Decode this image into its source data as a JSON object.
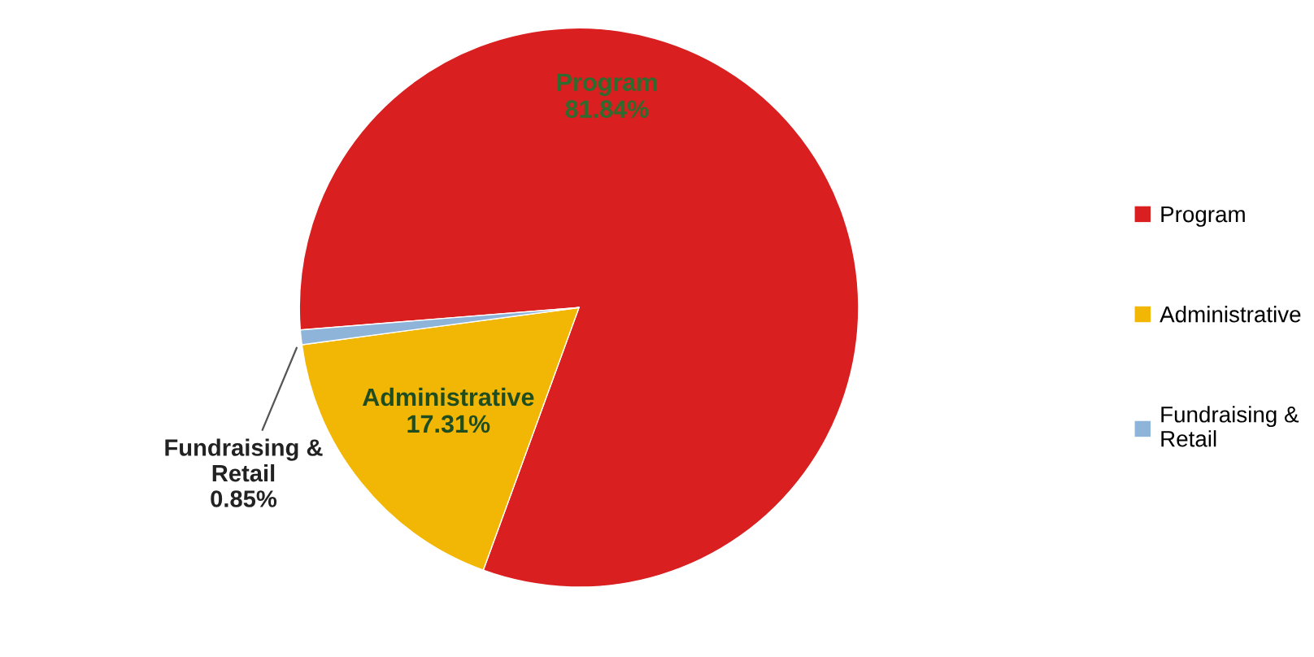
{
  "chart_data": {
    "type": "pie",
    "categories": [
      "Program",
      "Administrative",
      "Fundraising & Retail"
    ],
    "values": [
      81.84,
      17.31,
      0.85
    ],
    "value_labels": [
      "81.84%",
      "17.31%",
      "0.85%"
    ],
    "colors": [
      "#d91f1f",
      "#f2b705",
      "#8fb4d9"
    ],
    "legend": "right"
  }
}
